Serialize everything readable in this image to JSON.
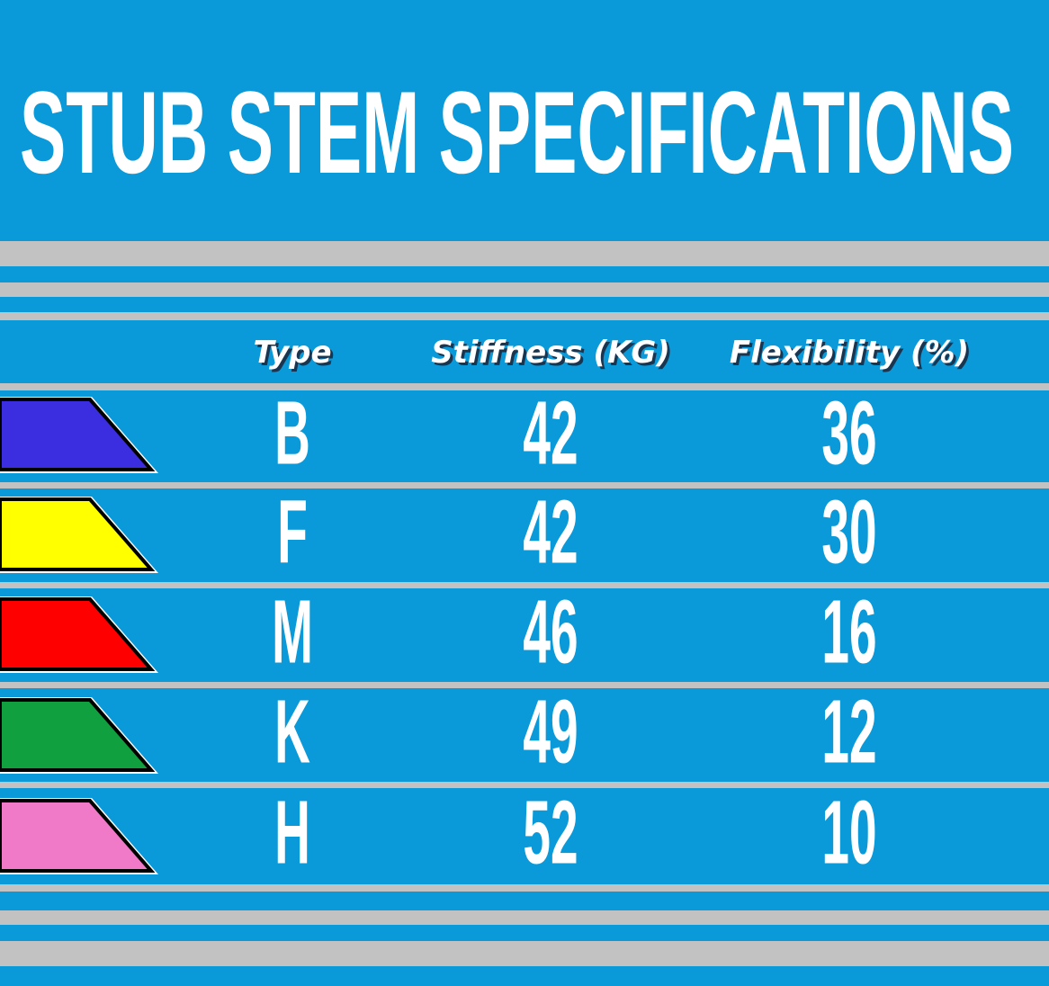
{
  "title": "STUB STEM SPECIFICATIONS",
  "table": {
    "headers": [
      "Type",
      "Stiffness (KG)",
      "Flexibility (%)"
    ],
    "rows": [
      [
        "B",
        42,
        36
      ],
      [
        "F",
        42,
        30
      ],
      [
        "M",
        46,
        16
      ],
      [
        "K",
        49,
        12
      ],
      [
        "H",
        52,
        10
      ]
    ]
  }
}
